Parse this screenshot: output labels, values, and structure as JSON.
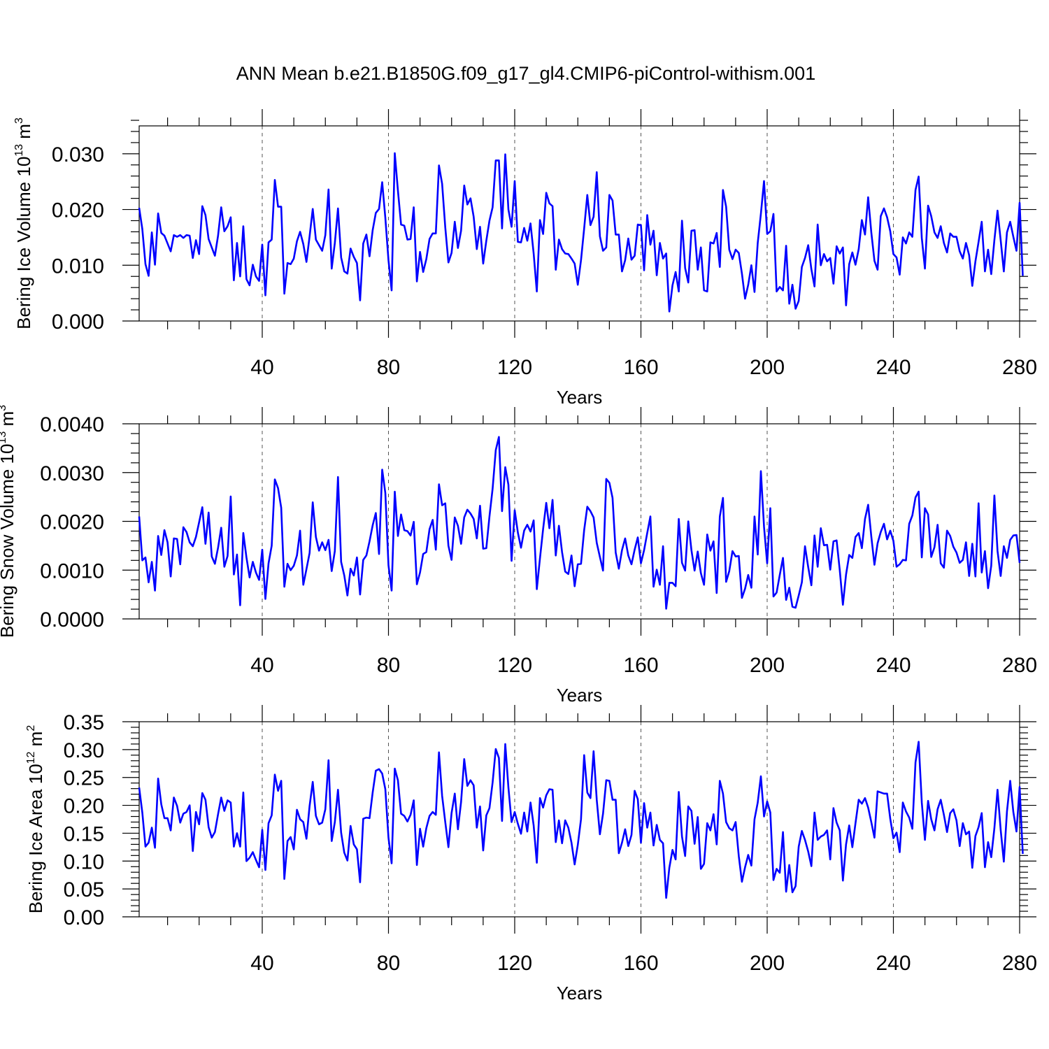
{
  "figure": {
    "title": "ANN Mean b.e21.B1850G.f09_g17_gl4.CMIP6-piControl-withism.001",
    "line_color": "#0000ff"
  },
  "chart_data": [
    {
      "type": "line",
      "ylabel_main": "Bering Ice Volume 10",
      "ylabel_exp": "13",
      "ylabel_unit": " m",
      "ylabel_unit_exp": "3",
      "xlabel": "Years",
      "xlim": [
        1,
        280
      ],
      "ylim": [
        0,
        0.035
      ],
      "x_ticks": [
        40,
        80,
        120,
        160,
        200,
        240,
        280
      ],
      "x_tick_labels": [
        "40",
        "80",
        "120",
        "160",
        "200",
        "240",
        "280"
      ],
      "y_ticks": [
        0,
        0.01,
        0.02,
        0.03
      ],
      "y_tick_labels": [
        "0.000",
        "0.010",
        "0.020",
        "0.030"
      ],
      "y_minor_step": 0.002,
      "grid": "dashed vertical at major x ticks",
      "series": [
        {
          "name": "Bering Ice Volume",
          "x_start": 1,
          "values": [
            0.0203,
            0.0165,
            0.0102,
            0.0081,
            0.0159,
            0.0101,
            0.0193,
            0.0158,
            0.0153,
            0.0139,
            0.0125,
            0.0154,
            0.0151,
            0.0154,
            0.0149,
            0.0154,
            0.0153,
            0.0113,
            0.0145,
            0.012,
            0.0206,
            0.019,
            0.0147,
            0.0132,
            0.0117,
            0.0153,
            0.0204,
            0.0161,
            0.017,
            0.0186,
            0.0073,
            0.014,
            0.008,
            0.017,
            0.0075,
            0.0064,
            0.0101,
            0.008,
            0.0072,
            0.0137,
            0.0046,
            0.0141,
            0.0146,
            0.0253,
            0.0205,
            0.0205,
            0.0049,
            0.0104,
            0.0102,
            0.0112,
            0.0143,
            0.016,
            0.0138,
            0.0106,
            0.0152,
            0.0201,
            0.0146,
            0.0136,
            0.0126,
            0.0154,
            0.0236,
            0.0094,
            0.014,
            0.0202,
            0.0114,
            0.0089,
            0.0085,
            0.013,
            0.0115,
            0.0104,
            0.0037,
            0.0139,
            0.0155,
            0.0116,
            0.0163,
            0.0194,
            0.0201,
            0.0249,
            0.0185,
            0.0109,
            0.0055,
            0.0301,
            0.0234,
            0.0173,
            0.0171,
            0.0146,
            0.0147,
            0.0204,
            0.0071,
            0.0124,
            0.0088,
            0.0111,
            0.0147,
            0.0157,
            0.0157,
            0.0279,
            0.0246,
            0.0168,
            0.0105,
            0.0122,
            0.0178,
            0.0131,
            0.0162,
            0.0243,
            0.0209,
            0.022,
            0.0187,
            0.0129,
            0.0169,
            0.0103,
            0.0144,
            0.018,
            0.0204,
            0.0288,
            0.0288,
            0.0166,
            0.0299,
            0.02,
            0.0169,
            0.0251,
            0.0142,
            0.0141,
            0.0167,
            0.0144,
            0.0175,
            0.0121,
            0.0053,
            0.0181,
            0.0156,
            0.023,
            0.0211,
            0.0206,
            0.0092,
            0.0146,
            0.0129,
            0.0121,
            0.012,
            0.0112,
            0.0103,
            0.0065,
            0.0109,
            0.0166,
            0.0226,
            0.0172,
            0.0187,
            0.0267,
            0.0152,
            0.0126,
            0.0132,
            0.0226,
            0.0216,
            0.0155,
            0.0155,
            0.0089,
            0.0109,
            0.0148,
            0.011,
            0.0117,
            0.0173,
            0.0172,
            0.0091,
            0.019,
            0.0137,
            0.0162,
            0.0082,
            0.014,
            0.0112,
            0.0121,
            0.0017,
            0.0064,
            0.0088,
            0.0053,
            0.018,
            0.0095,
            0.0069,
            0.0162,
            0.0163,
            0.0092,
            0.0132,
            0.0055,
            0.0053,
            0.0141,
            0.0139,
            0.0158,
            0.0097,
            0.0235,
            0.0205,
            0.0128,
            0.0111,
            0.0128,
            0.0122,
            0.0085,
            0.004,
            0.0065,
            0.01,
            0.0052,
            0.014,
            0.0192,
            0.0251,
            0.0156,
            0.0161,
            0.0192,
            0.0053,
            0.0061,
            0.0055,
            0.0135,
            0.0031,
            0.0065,
            0.0022,
            0.0036,
            0.0097,
            0.0113,
            0.0136,
            0.0093,
            0.0062,
            0.0173,
            0.01,
            0.012,
            0.0107,
            0.0113,
            0.0067,
            0.0134,
            0.0121,
            0.0132,
            0.0028,
            0.0102,
            0.0123,
            0.0101,
            0.0129,
            0.0181,
            0.0155,
            0.0222,
            0.0159,
            0.0108,
            0.0092,
            0.0188,
            0.0202,
            0.0186,
            0.0161,
            0.012,
            0.0114,
            0.0083,
            0.015,
            0.0139,
            0.0159,
            0.0151,
            0.0235,
            0.0259,
            0.0149,
            0.0094,
            0.0207,
            0.0188,
            0.0159,
            0.0149,
            0.017,
            0.014,
            0.0123,
            0.0157,
            0.0151,
            0.0151,
            0.0125,
            0.0112,
            0.014,
            0.0118,
            0.0063,
            0.0107,
            0.0142,
            0.0178,
            0.0089,
            0.0128,
            0.0084,
            0.0145,
            0.0198,
            0.0145,
            0.0089,
            0.0159,
            0.0178,
            0.0151,
            0.0126,
            0.0212,
            0.0081
          ]
        }
      ]
    },
    {
      "type": "line",
      "ylabel_main": "Bering Snow Volume 10",
      "ylabel_exp": "13",
      "ylabel_unit": " m",
      "ylabel_unit_exp": "3",
      "xlabel": "Years",
      "xlim": [
        1,
        280
      ],
      "ylim": [
        0,
        0.004
      ],
      "x_ticks": [
        40,
        80,
        120,
        160,
        200,
        240,
        280
      ],
      "x_tick_labels": [
        "40",
        "80",
        "120",
        "160",
        "200",
        "240",
        "280"
      ],
      "y_ticks": [
        0,
        0.001,
        0.002,
        0.003,
        0.004
      ],
      "y_tick_labels": [
        "0.0000",
        "0.0010",
        "0.0020",
        "0.0030",
        "0.0040"
      ],
      "y_minor_step": 0.0002,
      "grid": "dashed vertical at major x ticks",
      "series": [
        {
          "name": "Bering Snow Volume",
          "x_start": 1,
          "values": [
            0.0021,
            0.0012,
            0.00126,
            0.00075,
            0.00117,
            0.00058,
            0.0017,
            0.00131,
            0.00182,
            0.00157,
            0.00087,
            0.00165,
            0.00164,
            0.00112,
            0.00188,
            0.00178,
            0.00157,
            0.00149,
            0.00168,
            0.00198,
            0.00229,
            0.00154,
            0.00218,
            0.00128,
            0.00113,
            0.00146,
            0.00187,
            0.00107,
            0.00129,
            0.00251,
            0.00091,
            0.00132,
            0.00028,
            0.00176,
            0.00126,
            0.00085,
            0.00117,
            0.00095,
            0.0008,
            0.00142,
            0.00041,
            0.00114,
            0.0015,
            0.00286,
            0.00268,
            0.00228,
            0.00066,
            0.00113,
            0.001,
            0.00109,
            0.0013,
            0.00181,
            0.0007,
            0.00102,
            0.00135,
            0.00239,
            0.00168,
            0.0014,
            0.00157,
            0.00141,
            0.00162,
            0.00098,
            0.00139,
            0.00291,
            0.00117,
            0.00089,
            0.00048,
            0.00103,
            0.00089,
            0.00126,
            0.0005,
            0.00121,
            0.0013,
            0.00159,
            0.00192,
            0.00217,
            0.00133,
            0.00306,
            0.00258,
            0.0011,
            0.00058,
            0.00261,
            0.0017,
            0.00214,
            0.00182,
            0.0018,
            0.00171,
            0.00199,
            0.00071,
            0.00095,
            0.00133,
            0.00137,
            0.00184,
            0.00203,
            0.00142,
            0.00276,
            0.00233,
            0.00237,
            0.0015,
            0.00121,
            0.00208,
            0.00191,
            0.00154,
            0.00208,
            0.00224,
            0.00216,
            0.00205,
            0.00165,
            0.00232,
            0.00144,
            0.00145,
            0.0021,
            0.00267,
            0.00346,
            0.00373,
            0.00221,
            0.00311,
            0.00275,
            0.00119,
            0.00223,
            0.00177,
            0.00146,
            0.00181,
            0.00193,
            0.00179,
            0.00202,
            0.00061,
            0.00124,
            0.00184,
            0.00238,
            0.00186,
            0.00244,
            0.0013,
            0.00191,
            0.00137,
            0.00097,
            0.00092,
            0.0013,
            0.00067,
            0.00112,
            0.00113,
            0.00182,
            0.0023,
            0.00221,
            0.00208,
            0.00156,
            0.00127,
            0.00099,
            0.00287,
            0.00279,
            0.00248,
            0.00136,
            0.00103,
            0.00141,
            0.00165,
            0.0013,
            0.00112,
            0.00142,
            0.00167,
            0.00114,
            0.00141,
            0.00176,
            0.0021,
            0.00066,
            0.00101,
            0.0007,
            0.00149,
            0.00021,
            0.00074,
            0.00074,
            0.00067,
            0.00205,
            0.00115,
            0.00099,
            0.002,
            0.00141,
            0.00099,
            0.00138,
            0.00094,
            0.0007,
            0.00173,
            0.0014,
            0.00159,
            0.00053,
            0.0021,
            0.00248,
            0.00076,
            0.00098,
            0.00139,
            0.00128,
            0.00129,
            0.00043,
            0.00062,
            0.0009,
            0.00064,
            0.0021,
            0.00132,
            0.00303,
            0.00189,
            0.00114,
            0.00227,
            0.00046,
            0.00054,
            0.0009,
            0.00125,
            0.00039,
            0.00064,
            0.00025,
            0.00023,
            0.00048,
            0.00075,
            0.00149,
            0.00106,
            0.00069,
            0.00171,
            0.00107,
            0.00186,
            0.00151,
            0.00152,
            0.00101,
            0.00159,
            0.00161,
            0.001,
            0.00029,
            0.00091,
            0.00131,
            0.00125,
            0.00168,
            0.00176,
            0.00145,
            0.00205,
            0.00234,
            0.00169,
            0.00111,
            0.00155,
            0.00178,
            0.00195,
            0.00163,
            0.00181,
            0.0016,
            0.00107,
            0.00112,
            0.00121,
            0.0012,
            0.00195,
            0.00212,
            0.00249,
            0.00261,
            0.00126,
            0.00227,
            0.00214,
            0.00127,
            0.00147,
            0.00193,
            0.00114,
            0.00105,
            0.00181,
            0.0017,
            0.00148,
            0.00136,
            0.00115,
            0.00121,
            0.00157,
            0.00088,
            0.00154,
            0.00087,
            0.00237,
            0.00095,
            0.00139,
            0.00063,
            0.00109,
            0.00253,
            0.00139,
            0.00088,
            0.00149,
            0.00125,
            0.00162,
            0.00171,
            0.00172,
            0.00115
          ]
        }
      ]
    },
    {
      "type": "line",
      "ylabel_main": "Bering Ice Area 10",
      "ylabel_exp": "12",
      "ylabel_unit": " m",
      "ylabel_unit_exp": "2",
      "xlabel": "Years",
      "xlim": [
        1,
        280
      ],
      "ylim": [
        0,
        0.35
      ],
      "x_ticks": [
        40,
        80,
        120,
        160,
        200,
        240,
        280
      ],
      "x_tick_labels": [
        "40",
        "80",
        "120",
        "160",
        "200",
        "240",
        "280"
      ],
      "y_ticks": [
        0,
        0.05,
        0.1,
        0.15,
        0.2,
        0.25,
        0.3,
        0.35
      ],
      "y_tick_labels": [
        "0.00",
        "0.05",
        "0.10",
        "0.15",
        "0.20",
        "0.25",
        "0.30",
        "0.35"
      ],
      "y_minor_step": 0.01,
      "grid": "dashed vertical at major x ticks",
      "series": [
        {
          "name": "Bering Ice Area",
          "x_start": 1,
          "values": [
            0.232,
            0.187,
            0.126,
            0.133,
            0.16,
            0.124,
            0.248,
            0.202,
            0.177,
            0.177,
            0.155,
            0.214,
            0.199,
            0.169,
            0.185,
            0.188,
            0.2,
            0.118,
            0.188,
            0.166,
            0.222,
            0.21,
            0.161,
            0.142,
            0.152,
            0.184,
            0.214,
            0.19,
            0.209,
            0.205,
            0.126,
            0.15,
            0.126,
            0.223,
            0.1,
            0.106,
            0.116,
            0.102,
            0.089,
            0.156,
            0.084,
            0.168,
            0.182,
            0.255,
            0.226,
            0.244,
            0.068,
            0.136,
            0.143,
            0.121,
            0.192,
            0.175,
            0.17,
            0.14,
            0.199,
            0.242,
            0.181,
            0.166,
            0.169,
            0.193,
            0.281,
            0.136,
            0.17,
            0.228,
            0.151,
            0.115,
            0.101,
            0.163,
            0.13,
            0.121,
            0.062,
            0.176,
            0.178,
            0.177,
            0.223,
            0.262,
            0.265,
            0.257,
            0.229,
            0.142,
            0.096,
            0.266,
            0.245,
            0.185,
            0.181,
            0.171,
            0.183,
            0.209,
            0.093,
            0.158,
            0.126,
            0.159,
            0.181,
            0.188,
            0.183,
            0.295,
            0.217,
            0.17,
            0.125,
            0.186,
            0.221,
            0.157,
            0.206,
            0.283,
            0.235,
            0.245,
            0.236,
            0.16,
            0.198,
            0.119,
            0.182,
            0.195,
            0.241,
            0.301,
            0.285,
            0.172,
            0.31,
            0.232,
            0.17,
            0.188,
            0.167,
            0.149,
            0.187,
            0.153,
            0.205,
            0.164,
            0.097,
            0.213,
            0.196,
            0.218,
            0.229,
            0.228,
            0.134,
            0.173,
            0.132,
            0.173,
            0.16,
            0.133,
            0.094,
            0.129,
            0.175,
            0.29,
            0.223,
            0.213,
            0.297,
            0.21,
            0.148,
            0.185,
            0.245,
            0.244,
            0.21,
            0.21,
            0.114,
            0.133,
            0.157,
            0.127,
            0.147,
            0.226,
            0.211,
            0.133,
            0.204,
            0.16,
            0.187,
            0.128,
            0.165,
            0.138,
            0.132,
            0.034,
            0.088,
            0.12,
            0.103,
            0.224,
            0.144,
            0.109,
            0.198,
            0.19,
            0.131,
            0.179,
            0.086,
            0.095,
            0.168,
            0.155,
            0.184,
            0.13,
            0.244,
            0.221,
            0.17,
            0.159,
            0.155,
            0.17,
            0.109,
            0.063,
            0.089,
            0.111,
            0.092,
            0.175,
            0.205,
            0.252,
            0.18,
            0.207,
            0.187,
            0.066,
            0.086,
            0.079,
            0.152,
            0.045,
            0.093,
            0.044,
            0.055,
            0.126,
            0.154,
            0.138,
            0.117,
            0.091,
            0.187,
            0.138,
            0.144,
            0.147,
            0.155,
            0.103,
            0.195,
            0.169,
            0.155,
            0.065,
            0.13,
            0.164,
            0.125,
            0.168,
            0.21,
            0.203,
            0.213,
            0.196,
            0.17,
            0.142,
            0.225,
            0.223,
            0.221,
            0.221,
            0.176,
            0.141,
            0.151,
            0.116,
            0.205,
            0.189,
            0.178,
            0.158,
            0.277,
            0.314,
            0.205,
            0.138,
            0.208,
            0.175,
            0.155,
            0.193,
            0.21,
            0.183,
            0.152,
            0.186,
            0.193,
            0.173,
            0.127,
            0.168,
            0.148,
            0.153,
            0.088,
            0.145,
            0.161,
            0.186,
            0.089,
            0.134,
            0.107,
            0.159,
            0.228,
            0.156,
            0.099,
            0.189,
            0.244,
            0.188,
            0.153,
            0.233,
            0.113
          ]
        }
      ]
    }
  ]
}
